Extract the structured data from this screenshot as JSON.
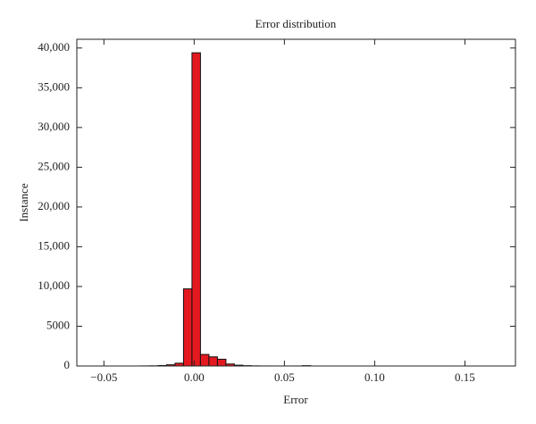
{
  "chart_data": {
    "type": "histogram",
    "title": "Error distribution",
    "x_label": "Error",
    "y_label": "Instance",
    "color": "#e3191f",
    "bins": [
      -0.0294,
      -0.0247,
      -0.02,
      -0.0153,
      -0.0106,
      -0.0059,
      -0.0012,
      0.0035,
      0.0082,
      0.0129,
      0.0176,
      0.0223,
      0.027,
      0.0317,
      0.0364,
      0.0411,
      0.0458,
      0.0505,
      0.0552,
      0.0599,
      0.0646
    ],
    "values": [
      10,
      20,
      60,
      150,
      350,
      9700,
      39400,
      1450,
      1150,
      850,
      250,
      100,
      40,
      15,
      5,
      3,
      2,
      2,
      5,
      40
    ],
    "xlim": [
      -0.065,
      0.178
    ],
    "xticks": [
      {
        "value": -0.05,
        "label": "−0.05"
      },
      {
        "value": 0,
        "label": "0.00"
      },
      0.05,
      {
        "value": 0.1,
        "label": "0.10"
      },
      0.15
    ],
    "ylim": [
      0,
      41100
    ],
    "yticks": [
      0,
      5000,
      {
        "value": 10000,
        "label": "10,000"
      },
      {
        "value": 15000,
        "label": "15,000"
      },
      {
        "value": 20000,
        "label": "20,000"
      },
      {
        "value": 25000,
        "label": "25,000"
      },
      {
        "value": 30000,
        "label": "30,000"
      },
      {
        "value": 35000,
        "label": "35,000"
      },
      {
        "value": 40000,
        "label": "40,000"
      }
    ]
  }
}
